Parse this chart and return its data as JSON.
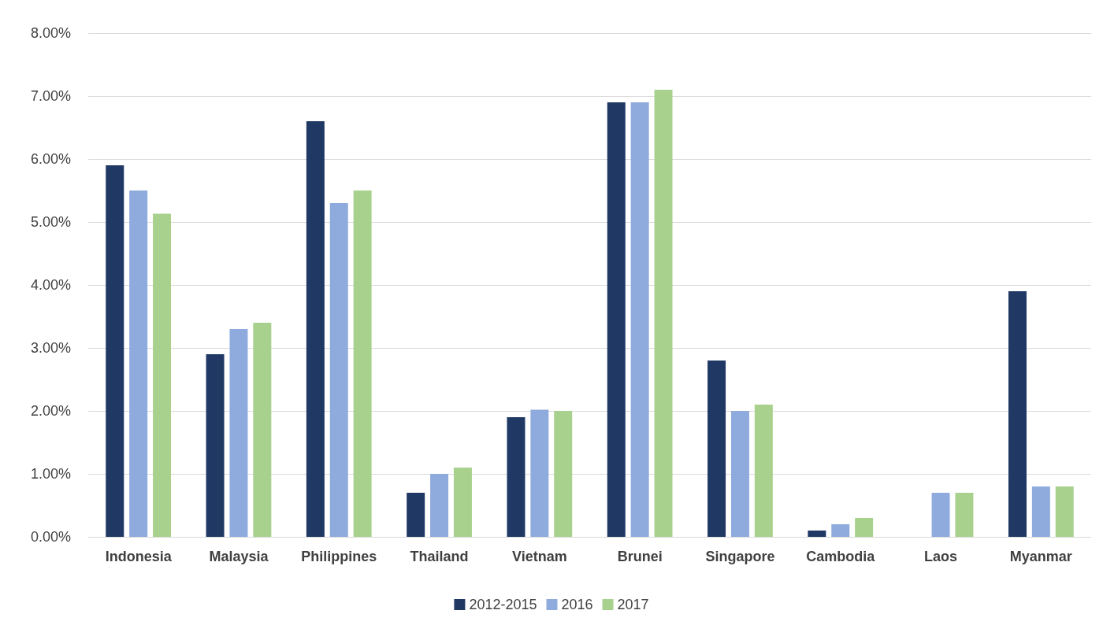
{
  "chart_data": {
    "type": "bar",
    "categories": [
      "Indonesia",
      "Malaysia",
      "Philippines",
      "Thailand",
      "Vietnam",
      "Brunei",
      "Singapore",
      "Cambodia",
      "Laos",
      "Myanmar"
    ],
    "series": [
      {
        "name": "2012-2015",
        "color": "#1f3864",
        "values": [
          5.9,
          2.9,
          6.6,
          0.7,
          1.9,
          6.9,
          2.8,
          0.1,
          null,
          3.9
        ]
      },
      {
        "name": "2016",
        "color": "#8faadc",
        "values": [
          5.5,
          3.3,
          5.3,
          1.0,
          2.02,
          6.9,
          2.0,
          0.2,
          0.7,
          0.8
        ]
      },
      {
        "name": "2017",
        "color": "#a9d18e",
        "values": [
          5.13,
          3.4,
          5.5,
          1.1,
          2.0,
          7.1,
          2.1,
          0.3,
          0.7,
          0.8
        ]
      }
    ],
    "ylim": [
      0,
      8
    ],
    "yticks": [
      {
        "value": 0,
        "label": "0.00%"
      },
      {
        "value": 1,
        "label": "1.00%"
      },
      {
        "value": 2,
        "label": "2.00%"
      },
      {
        "value": 3,
        "label": "3.00%"
      },
      {
        "value": 4,
        "label": "4.00%"
      },
      {
        "value": 5,
        "label": "5.00%"
      },
      {
        "value": 6,
        "label": "6.00%"
      },
      {
        "value": 7,
        "label": "7.00%"
      },
      {
        "value": 8,
        "label": "8.00%"
      }
    ],
    "grid": "y",
    "legend": "bottom"
  }
}
